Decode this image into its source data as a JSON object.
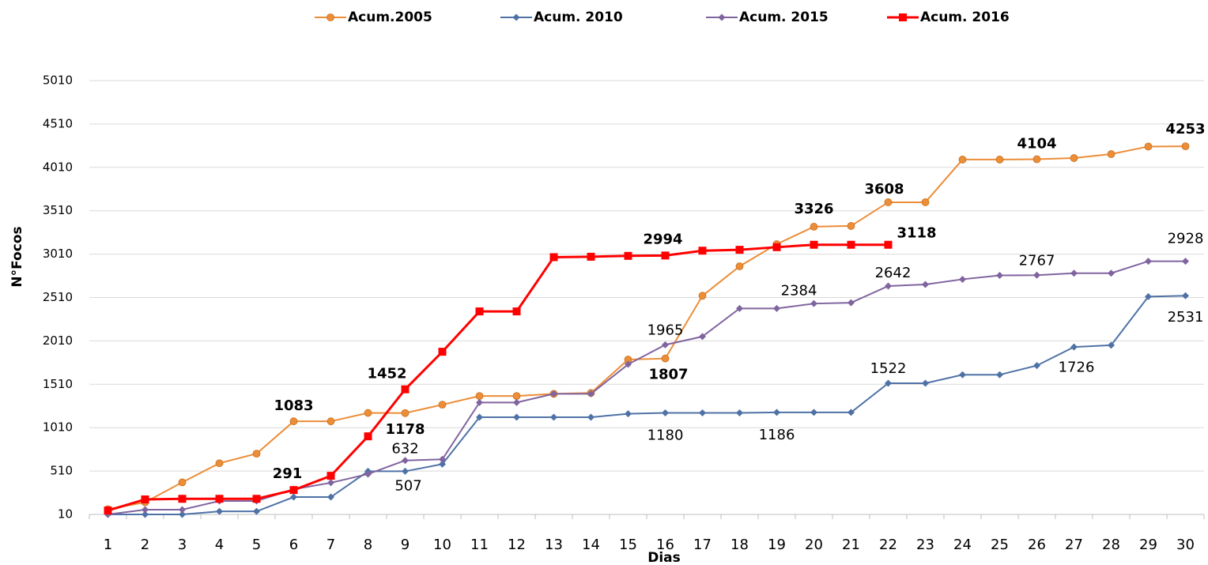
{
  "chart_data": {
    "type": "line",
    "x_label": "Dias",
    "y_label": "N°Focos",
    "categories": [
      "1",
      "2",
      "3",
      "4",
      "5",
      "6",
      "7",
      "8",
      "9",
      "10",
      "11",
      "12",
      "13",
      "14",
      "15",
      "16",
      "17",
      "18",
      "19",
      "20",
      "21",
      "22",
      "23",
      "24",
      "25",
      "26",
      "27",
      "28",
      "29",
      "30"
    ],
    "ylim": [
      10,
      5010
    ],
    "yticks": [
      10,
      510,
      1010,
      1510,
      2010,
      2510,
      3010,
      3510,
      4010,
      4510,
      5010
    ],
    "grid": true,
    "legend": "top",
    "series": [
      {
        "name": "Acum.2005",
        "color": "#ec8d37",
        "marker": "circle",
        "label_color": "#e57c1f",
        "values": [
          70,
          150,
          380,
          600,
          710,
          1083,
          1083,
          1180,
          1178,
          1275,
          1375,
          1375,
          1400,
          1410,
          1795,
          1807,
          2530,
          2870,
          3125,
          3326,
          3335,
          3608,
          3608,
          4100,
          4100,
          4104,
          4117,
          4163,
          4250,
          4253
        ],
        "value_labels": [
          null,
          null,
          null,
          null,
          null,
          "1083",
          null,
          null,
          "1178",
          null,
          null,
          null,
          null,
          null,
          null,
          "1807",
          null,
          null,
          null,
          "3326",
          null,
          "3608",
          null,
          null,
          null,
          "4104",
          null,
          null,
          null,
          "4253"
        ]
      },
      {
        "name": "Acum. 2010",
        "color": "#4f72a6",
        "marker": "diamond",
        "label_color": "#000000",
        "values": [
          10,
          10,
          10,
          45,
          45,
          210,
          210,
          507,
          507,
          590,
          1130,
          1130,
          1130,
          1130,
          1170,
          1180,
          1180,
          1180,
          1186,
          1186,
          1186,
          1522,
          1522,
          1620,
          1620,
          1726,
          1940,
          1960,
          2520,
          2531
        ],
        "value_labels": [
          null,
          null,
          null,
          null,
          null,
          null,
          null,
          null,
          "507",
          null,
          null,
          null,
          null,
          null,
          null,
          "1180",
          null,
          null,
          "1186",
          null,
          null,
          "1522",
          null,
          null,
          null,
          "1726",
          null,
          null,
          null,
          "2531"
        ]
      },
      {
        "name": "Acum. 2015",
        "color": "#80649f",
        "marker": "diamond",
        "label_color": "#000000",
        "values": [
          10,
          65,
          65,
          165,
          165,
          300,
          375,
          475,
          632,
          645,
          1300,
          1300,
          1400,
          1400,
          1740,
          1965,
          2060,
          2384,
          2384,
          2440,
          2450,
          2642,
          2660,
          2720,
          2765,
          2767,
          2790,
          2790,
          2928,
          2928
        ],
        "value_labels": [
          null,
          null,
          null,
          null,
          null,
          null,
          null,
          null,
          "632",
          null,
          null,
          null,
          null,
          null,
          null,
          "1965",
          null,
          null,
          "2384",
          null,
          null,
          "2642",
          null,
          null,
          null,
          "2767",
          null,
          null,
          null,
          "2928"
        ]
      },
      {
        "name": "Acum. 2016",
        "color": "#ff0000",
        "marker": "square",
        "label_color": "#ff0000",
        "values": [
          55,
          183,
          190,
          190,
          190,
          291,
          455,
          910,
          1452,
          1885,
          2350,
          2350,
          2975,
          2980,
          2990,
          2994,
          3050,
          3060,
          3090,
          3118,
          3118,
          3118,
          null,
          null,
          null,
          null,
          null,
          null,
          null,
          null
        ],
        "value_labels": [
          null,
          null,
          null,
          null,
          null,
          "291",
          null,
          null,
          "1452",
          null,
          null,
          null,
          null,
          null,
          null,
          "2994",
          null,
          null,
          null,
          null,
          null,
          "3118",
          null,
          null,
          null,
          null,
          null,
          null,
          null,
          null
        ]
      }
    ]
  }
}
